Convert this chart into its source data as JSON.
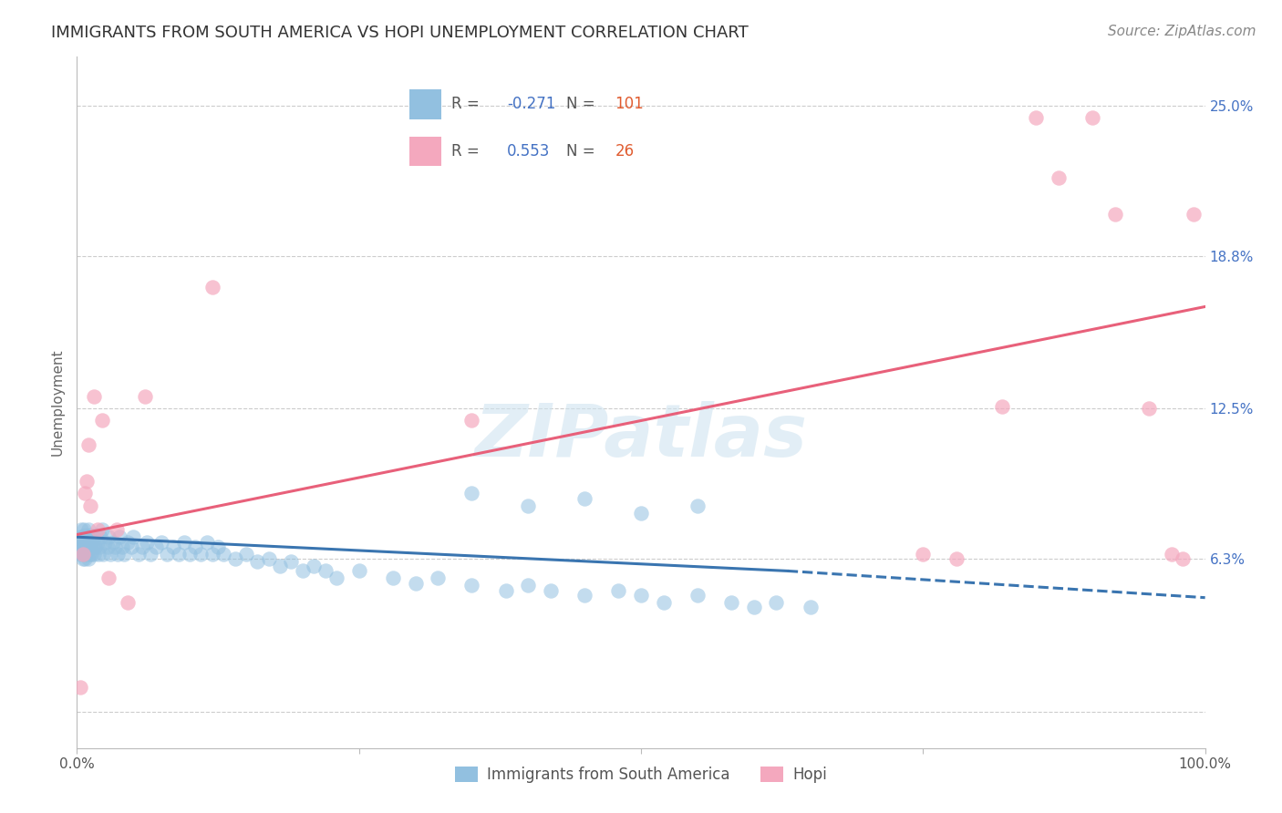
{
  "title": "IMMIGRANTS FROM SOUTH AMERICA VS HOPI UNEMPLOYMENT CORRELATION CHART",
  "source": "Source: ZipAtlas.com",
  "ylabel": "Unemployment",
  "watermark": "ZIPatlas",
  "xlim": [
    0,
    1.0
  ],
  "ylim": [
    -0.015,
    0.27
  ],
  "yticks": [
    0.0,
    0.063,
    0.125,
    0.188,
    0.25
  ],
  "yticklabels": [
    "",
    "6.3%",
    "12.5%",
    "18.8%",
    "25.0%"
  ],
  "blue_R": -0.271,
  "blue_N": 101,
  "pink_R": 0.553,
  "pink_N": 26,
  "blue_color": "#92c0e0",
  "pink_color": "#f4a8be",
  "blue_line_color": "#3a75b0",
  "pink_line_color": "#e8607a",
  "legend_label_blue": "Immigrants from South America",
  "legend_label_pink": "Hopi",
  "title_fontsize": 13,
  "axis_label_fontsize": 11,
  "tick_fontsize": 11,
  "source_fontsize": 11,
  "background_color": "#ffffff",
  "grid_color": "#cccccc",
  "blue_scatter_x": [
    0.002,
    0.003,
    0.003,
    0.004,
    0.004,
    0.004,
    0.005,
    0.005,
    0.005,
    0.006,
    0.006,
    0.006,
    0.007,
    0.007,
    0.007,
    0.008,
    0.008,
    0.009,
    0.009,
    0.01,
    0.01,
    0.01,
    0.011,
    0.011,
    0.012,
    0.012,
    0.013,
    0.013,
    0.014,
    0.015,
    0.015,
    0.016,
    0.017,
    0.018,
    0.019,
    0.02,
    0.021,
    0.022,
    0.023,
    0.025,
    0.027,
    0.028,
    0.03,
    0.032,
    0.034,
    0.036,
    0.038,
    0.04,
    0.042,
    0.045,
    0.048,
    0.05,
    0.055,
    0.058,
    0.062,
    0.065,
    0.07,
    0.075,
    0.08,
    0.085,
    0.09,
    0.095,
    0.1,
    0.105,
    0.11,
    0.115,
    0.12,
    0.125,
    0.13,
    0.14,
    0.15,
    0.16,
    0.17,
    0.18,
    0.19,
    0.2,
    0.21,
    0.22,
    0.23,
    0.25,
    0.28,
    0.3,
    0.32,
    0.35,
    0.38,
    0.4,
    0.42,
    0.45,
    0.48,
    0.5,
    0.52,
    0.55,
    0.58,
    0.6,
    0.62,
    0.65,
    0.35,
    0.4,
    0.45,
    0.5,
    0.55
  ],
  "blue_scatter_y": [
    0.066,
    0.068,
    0.072,
    0.065,
    0.07,
    0.075,
    0.063,
    0.068,
    0.072,
    0.065,
    0.07,
    0.075,
    0.063,
    0.068,
    0.073,
    0.065,
    0.07,
    0.068,
    0.072,
    0.063,
    0.068,
    0.075,
    0.065,
    0.072,
    0.068,
    0.073,
    0.065,
    0.07,
    0.068,
    0.065,
    0.072,
    0.068,
    0.073,
    0.07,
    0.065,
    0.068,
    0.072,
    0.075,
    0.065,
    0.07,
    0.068,
    0.072,
    0.065,
    0.07,
    0.068,
    0.065,
    0.072,
    0.068,
    0.065,
    0.07,
    0.068,
    0.072,
    0.065,
    0.068,
    0.07,
    0.065,
    0.068,
    0.07,
    0.065,
    0.068,
    0.065,
    0.07,
    0.065,
    0.068,
    0.065,
    0.07,
    0.065,
    0.068,
    0.065,
    0.063,
    0.065,
    0.062,
    0.063,
    0.06,
    0.062,
    0.058,
    0.06,
    0.058,
    0.055,
    0.058,
    0.055,
    0.053,
    0.055,
    0.052,
    0.05,
    0.052,
    0.05,
    0.048,
    0.05,
    0.048,
    0.045,
    0.048,
    0.045,
    0.043,
    0.045,
    0.043,
    0.09,
    0.085,
    0.088,
    0.082,
    0.085
  ],
  "pink_scatter_x": [
    0.003,
    0.005,
    0.007,
    0.009,
    0.01,
    0.012,
    0.015,
    0.018,
    0.022,
    0.028,
    0.035,
    0.045,
    0.06,
    0.12,
    0.35,
    0.75,
    0.78,
    0.82,
    0.85,
    0.87,
    0.9,
    0.92,
    0.95,
    0.97,
    0.98,
    0.99
  ],
  "pink_scatter_y": [
    0.01,
    0.065,
    0.09,
    0.095,
    0.11,
    0.085,
    0.13,
    0.075,
    0.12,
    0.055,
    0.075,
    0.045,
    0.13,
    0.175,
    0.12,
    0.065,
    0.063,
    0.126,
    0.245,
    0.22,
    0.245,
    0.205,
    0.125,
    0.065,
    0.063,
    0.205
  ],
  "blue_line_x0": 0.0,
  "blue_line_x1": 0.63,
  "blue_line_x2": 1.0,
  "blue_line_y0": 0.072,
  "blue_line_y1": 0.058,
  "blue_line_y2": 0.047,
  "pink_line_x0": 0.0,
  "pink_line_x1": 1.0,
  "pink_line_y0": 0.073,
  "pink_line_y1": 0.167
}
